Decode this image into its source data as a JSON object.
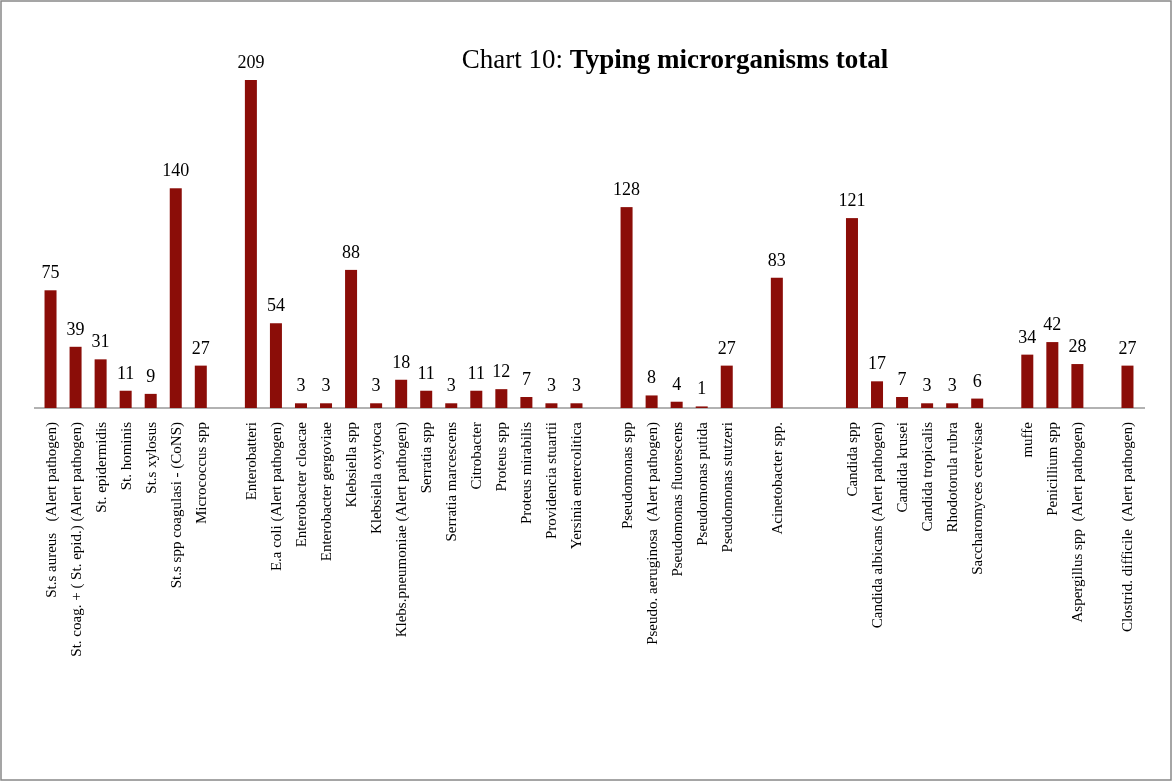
{
  "chart_data": {
    "type": "bar",
    "title": "Chart 10: Typing microrganisms total",
    "categories": [
      "St.s aureus   (Alert pathogen)",
      "St. coag. + ( St. epid.) (Alert pathogen)",
      "St. epidermidis",
      "St. hominis",
      "St.s xylosus",
      "St.s spp coagulasi - (CoNS)",
      "Micrococcus spp",
      null,
      "Enterobatteri",
      "E.a coli (Alert pathogen)",
      "Enterobacter cloacae",
      "Enterobacter gergoviae",
      "Klebsiella spp",
      "Klebsiella oxytoca",
      "Klebs.pneumoniae (Alert pathogen)",
      "Serratia spp",
      "Serratia marcescens",
      "Citrobacter",
      "Proteus spp",
      "Proteus mirabilis",
      "Providencia stuartii",
      "Yersinia entercolitica",
      null,
      "Pseudomonas spp",
      "Pseudo. aeruginosa  (Alert pathogen)",
      "Pseudomonas fluorescens",
      "Pseudomonas putida",
      "Pseudomonas stutzeri",
      null,
      "Acinetobacter spp.",
      null,
      null,
      "Candida spp",
      "Candida albicans (Alert pathogen)",
      "Candida krusei",
      "Candida tropicalis",
      "Rhodotorula rubra",
      "Saccharomyces cerevisae",
      null,
      "muffe",
      "Penicillium spp",
      "Aspergillus spp  (Alert pathogen)",
      null,
      "Clostrid. difficile  (Alert pathogen)"
    ],
    "values": [
      75,
      39,
      31,
      11,
      9,
      140,
      27,
      null,
      209,
      54,
      3,
      3,
      88,
      3,
      18,
      11,
      3,
      11,
      12,
      7,
      3,
      3,
      null,
      128,
      8,
      4,
      1,
      27,
      null,
      83,
      null,
      null,
      121,
      17,
      7,
      3,
      3,
      6,
      null,
      34,
      42,
      28,
      null,
      27
    ],
    "color": "#8b0d08",
    "data_labels": true
  }
}
